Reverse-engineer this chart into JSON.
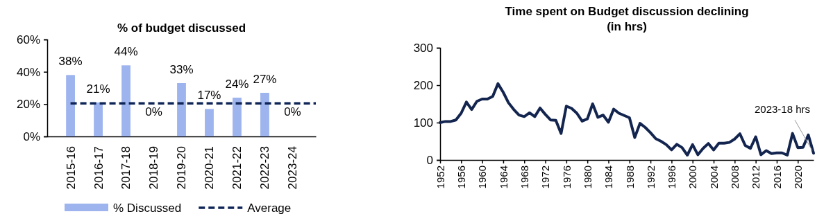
{
  "chart_data": [
    {
      "type": "bar",
      "title": "% of budget discussed",
      "categories": [
        "2015-16",
        "2016-17",
        "2017-18",
        "2018-19",
        "2019-20",
        "2020-21",
        "2021-22",
        "2022-23",
        "2023-24"
      ],
      "series": [
        {
          "name": "% Discussed",
          "color": "#9db4ee",
          "values": [
            38,
            21,
            44,
            0,
            33,
            17,
            24,
            27,
            0
          ],
          "value_labels": [
            "38%",
            "21%",
            "44%",
            "0%",
            "33%",
            "17%",
            "24%",
            "27%",
            "0%"
          ]
        }
      ],
      "ylim": [
        0,
        60
      ],
      "yticks": [
        {
          "value": 0,
          "label": "0%"
        },
        {
          "value": 20,
          "label": "20%"
        },
        {
          "value": 40,
          "label": "40%"
        },
        {
          "value": 60,
          "label": "60%"
        }
      ],
      "ref_lines": [
        {
          "axis": "y",
          "value": 20.5,
          "label": "Average",
          "color": "#0f2557",
          "line_style": "dashed"
        }
      ],
      "legend": "bottom",
      "grid": false
    },
    {
      "type": "line",
      "title": "Time spent on Budget discussion declining (in hrs)",
      "x": [
        1952,
        1953,
        1954,
        1955,
        1956,
        1957,
        1958,
        1959,
        1960,
        1961,
        1962,
        1963,
        1964,
        1965,
        1966,
        1967,
        1968,
        1969,
        1970,
        1971,
        1972,
        1973,
        1974,
        1975,
        1976,
        1977,
        1978,
        1979,
        1980,
        1981,
        1982,
        1983,
        1984,
        1985,
        1986,
        1987,
        1988,
        1989,
        1990,
        1991,
        1992,
        1993,
        1994,
        1995,
        1996,
        1997,
        1998,
        1999,
        2000,
        2001,
        2002,
        2003,
        2004,
        2005,
        2006,
        2007,
        2008,
        2009,
        2010,
        2011,
        2012,
        2013,
        2014,
        2015,
        2016,
        2017,
        2018,
        2019,
        2020,
        2021,
        2022,
        2023
      ],
      "series": [
        {
          "color": "#13254f",
          "values": [
            100,
            103,
            103,
            107,
            125,
            155,
            135,
            157,
            163,
            163,
            170,
            204,
            181,
            153,
            135,
            120,
            116,
            126,
            116,
            139,
            122,
            107,
            106,
            71,
            144,
            138,
            125,
            104,
            110,
            150,
            114,
            120,
            101,
            136,
            125,
            119,
            113,
            60,
            98,
            87,
            73,
            57,
            50,
            41,
            27,
            42,
            33,
            13,
            41,
            14,
            31,
            44,
            27,
            45,
            45,
            47,
            56,
            70,
            39,
            31,
            62,
            14,
            25,
            17,
            19,
            19,
            13,
            71,
            33,
            34,
            67,
            18
          ]
        }
      ],
      "xlim": [
        1952,
        2023
      ],
      "xticks": [
        1952,
        1956,
        1960,
        1964,
        1968,
        1972,
        1976,
        1980,
        1984,
        1988,
        1992,
        1996,
        2000,
        2004,
        2008,
        2012,
        2016,
        2020
      ],
      "ylim": [
        0,
        300
      ],
      "yticks": [
        0,
        100,
        200,
        300
      ],
      "annotations": [
        {
          "text": "2023-18 hrs",
          "x": 2023,
          "y": 18
        }
      ],
      "grid": false,
      "marker": "none",
      "line_style": "solid"
    }
  ]
}
